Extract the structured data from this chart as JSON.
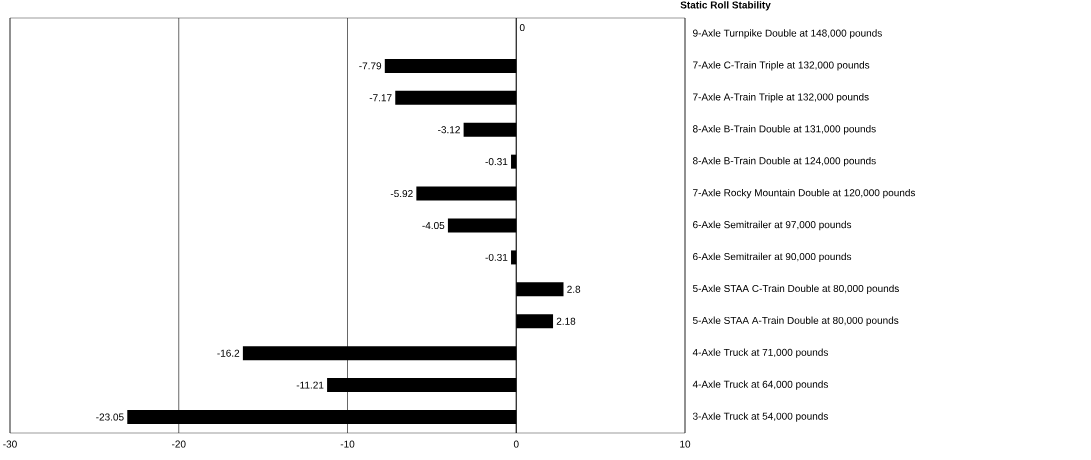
{
  "chart_data": {
    "type": "bar",
    "orientation": "horizontal",
    "title": "Static Roll Stability",
    "categories": [
      "9-Axle Turnpike Double at 148,000 pounds",
      "7-Axle C-Train Triple at 132,000 pounds",
      "7-Axle A-Train Triple at 132,000 pounds",
      "8-Axle B-Train Double at 131,000 pounds",
      "8-Axle B-Train Double at 124,000 pounds",
      "7-Axle Rocky Mountain Double at 120,000 pounds",
      "6-Axle Semitrailer at 97,000 pounds",
      "6-Axle Semitrailer at 90,000 pounds",
      "5-Axle STAA C-Train Double at 80,000 pounds",
      "5-Axle STAA A-Train Double at 80,000 pounds",
      "4-Axle Truck at 71,000 pounds",
      "4-Axle Truck at 64,000 pounds",
      "3-Axle Truck at 54,000 pounds"
    ],
    "values": [
      0,
      -7.79,
      -7.17,
      -3.12,
      -0.31,
      -5.92,
      -4.05,
      -0.31,
      2.8,
      2.18,
      -16.2,
      -11.21,
      -23.05
    ],
    "color": "#000000",
    "xlim": [
      -30,
      10
    ],
    "xticks": [
      -30,
      -20,
      -10,
      0,
      10
    ],
    "grid": "x",
    "data_labels": true
  }
}
